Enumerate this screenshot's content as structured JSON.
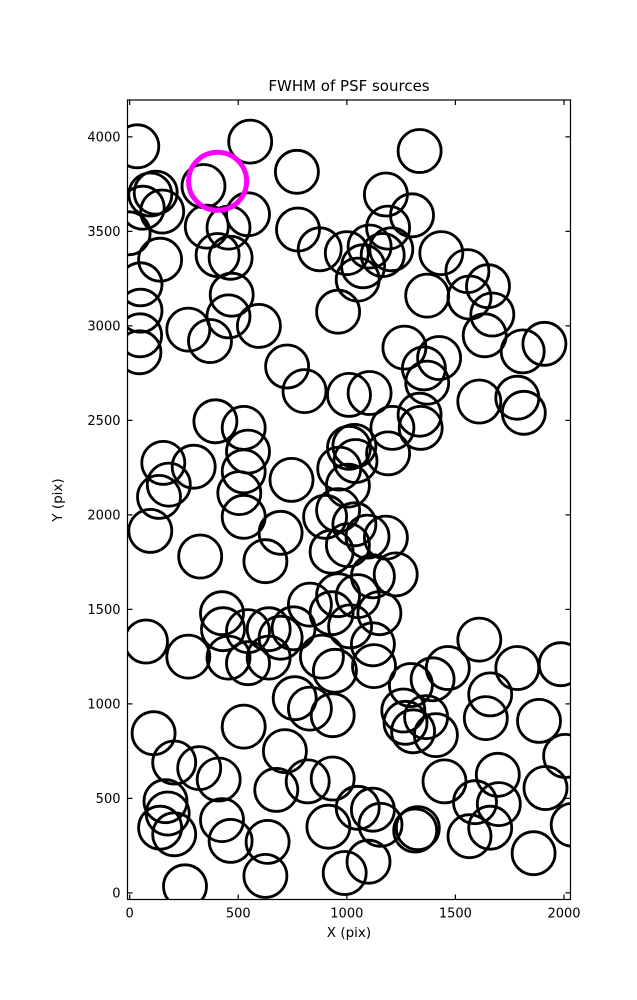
{
  "title": "FWHM of PSF sources",
  "x_axis_label": "X (pix)",
  "y_axis_label": "Y (pix)",
  "colors": {
    "marker": "#000000",
    "highlight": "#ff00ff",
    "axes": "#000000",
    "background": "#ffffff"
  },
  "chart_data": {
    "type": "scatter",
    "title": "FWHM of PSF sources",
    "xlabel": "X (pix)",
    "ylabel": "Y (pix)",
    "xlim": [
      -10,
      2030
    ],
    "ylim": [
      -35,
      4195
    ],
    "xticks": [
      0,
      500,
      1000,
      1500,
      2000
    ],
    "yticks": [
      0,
      500,
      1000,
      1500,
      2000,
      2500,
      3000,
      3500,
      4000
    ],
    "grid": false,
    "legend": null,
    "marker_style": "open-circle",
    "marker_radius_px": 21.5,
    "marker_stroke_px": 2.8,
    "points": [
      [
        35,
        3950
      ],
      [
        555,
        3975
      ],
      [
        1335,
        3925
      ],
      [
        340,
        3740
      ],
      [
        770,
        3815
      ],
      [
        95,
        3695
      ],
      [
        120,
        3705
      ],
      [
        60,
        3625
      ],
      [
        150,
        3605
      ],
      [
        355,
        3525
      ],
      [
        455,
        3520
      ],
      [
        545,
        3590
      ],
      [
        775,
        3510
      ],
      [
        875,
        3405
      ],
      [
        1000,
        3385
      ],
      [
        140,
        3350
      ],
      [
        50,
        3220
      ],
      [
        405,
        3375
      ],
      [
        465,
        3360
      ],
      [
        470,
        3165
      ],
      [
        -5,
        3490
      ],
      [
        1180,
        3695
      ],
      [
        1300,
        3585
      ],
      [
        1190,
        3520
      ],
      [
        1105,
        3420
      ],
      [
        1205,
        3405
      ],
      [
        1165,
        3375
      ],
      [
        1075,
        3315
      ],
      [
        1050,
        3245
      ],
      [
        1370,
        3160
      ],
      [
        1435,
        3385
      ],
      [
        1555,
        3290
      ],
      [
        1650,
        3210
      ],
      [
        1565,
        3150
      ],
      [
        1670,
        3060
      ],
      [
        50,
        3080
      ],
      [
        48,
        2950
      ],
      [
        45,
        2860
      ],
      [
        270,
        2980
      ],
      [
        370,
        2920
      ],
      [
        455,
        3050
      ],
      [
        595,
        3000
      ],
      [
        960,
        3075
      ],
      [
        725,
        2785
      ],
      [
        805,
        2655
      ],
      [
        1010,
        2635
      ],
      [
        1105,
        2645
      ],
      [
        1265,
        2885
      ],
      [
        1425,
        2830
      ],
      [
        1355,
        2775
      ],
      [
        1370,
        2700
      ],
      [
        1635,
        2950
      ],
      [
        1810,
        2865
      ],
      [
        1910,
        2905
      ],
      [
        1785,
        2620
      ],
      [
        1815,
        2540
      ],
      [
        1610,
        2600
      ],
      [
        395,
        2495
      ],
      [
        525,
        2460
      ],
      [
        545,
        2335
      ],
      [
        525,
        2230
      ],
      [
        155,
        2275
      ],
      [
        295,
        2255
      ],
      [
        180,
        2160
      ],
      [
        135,
        2095
      ],
      [
        505,
        2115
      ],
      [
        745,
        2185
      ],
      [
        1335,
        2530
      ],
      [
        1340,
        2460
      ],
      [
        1210,
        2460
      ],
      [
        1035,
        2365
      ],
      [
        1010,
        2355
      ],
      [
        1040,
        2285
      ],
      [
        1190,
        2325
      ],
      [
        1005,
        2155
      ],
      [
        965,
        2245
      ],
      [
        95,
        1915
      ],
      [
        325,
        1780
      ],
      [
        525,
        1990
      ],
      [
        625,
        1755
      ],
      [
        695,
        1905
      ],
      [
        900,
        1990
      ],
      [
        960,
        2025
      ],
      [
        1005,
        1840
      ],
      [
        930,
        1805
      ],
      [
        1035,
        1950
      ],
      [
        1095,
        1885
      ],
      [
        1180,
        1880
      ],
      [
        1225,
        1685
      ],
      [
        1120,
        1675
      ],
      [
        1050,
        1570
      ],
      [
        1150,
        1480
      ],
      [
        830,
        1525
      ],
      [
        930,
        1480
      ],
      [
        960,
        1575
      ],
      [
        425,
        1480
      ],
      [
        430,
        1395
      ],
      [
        545,
        1385
      ],
      [
        640,
        1395
      ],
      [
        695,
        1350
      ],
      [
        755,
        1400
      ],
      [
        75,
        1330
      ],
      [
        270,
        1250
      ],
      [
        455,
        1245
      ],
      [
        545,
        1215
      ],
      [
        640,
        1245
      ],
      [
        885,
        1250
      ],
      [
        945,
        1175
      ],
      [
        1120,
        1315
      ],
      [
        1125,
        1200
      ],
      [
        1015,
        1410
      ],
      [
        1295,
        1100
      ],
      [
        1395,
        1130
      ],
      [
        1465,
        1190
      ],
      [
        1610,
        1340
      ],
      [
        1785,
        1190
      ],
      [
        1985,
        1210
      ],
      [
        1660,
        1050
      ],
      [
        760,
        1030
      ],
      [
        830,
        975
      ],
      [
        935,
        940
      ],
      [
        1260,
        965
      ],
      [
        1305,
        855
      ],
      [
        1365,
        930
      ],
      [
        1410,
        835
      ],
      [
        110,
        845
      ],
      [
        205,
        690
      ],
      [
        320,
        660
      ],
      [
        410,
        600
      ],
      [
        525,
        880
      ],
      [
        715,
        750
      ],
      [
        675,
        545
      ],
      [
        820,
        590
      ],
      [
        935,
        605
      ],
      [
        1270,
        900
      ],
      [
        1640,
        925
      ],
      [
        1885,
        910
      ],
      [
        2005,
        725
      ],
      [
        1450,
        590
      ],
      [
        1695,
        625
      ],
      [
        1915,
        555
      ],
      [
        1050,
        450
      ],
      [
        1120,
        440
      ],
      [
        165,
        485
      ],
      [
        175,
        420
      ],
      [
        140,
        345
      ],
      [
        205,
        310
      ],
      [
        425,
        385
      ],
      [
        465,
        275
      ],
      [
        635,
        270
      ],
      [
        625,
        90
      ],
      [
        255,
        35
      ],
      [
        915,
        350
      ],
      [
        990,
        105
      ],
      [
        1100,
        165
      ],
      [
        1155,
        360
      ],
      [
        1315,
        330
      ],
      [
        1327,
        343
      ],
      [
        1565,
        300
      ],
      [
        1660,
        345
      ],
      [
        1590,
        480
      ],
      [
        1700,
        470
      ],
      [
        1860,
        210
      ],
      [
        2040,
        360
      ]
    ],
    "highlight_point": {
      "x": 405,
      "y": 3765,
      "color": "#ff00ff",
      "radius_px": 29,
      "stroke_px": 5
    }
  }
}
